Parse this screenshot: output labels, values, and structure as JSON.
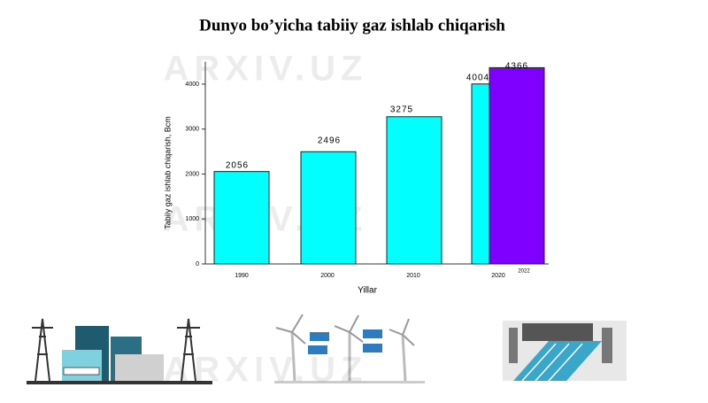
{
  "chart_data": {
    "type": "bar",
    "title": "Dunyo bo’yicha tabiiy gaz ishlab chiqarish",
    "x_label": "Yillar",
    "y_label": "Tabiiy gaz ishlab chiqarish, Bcm",
    "categories": [
      "1990",
      "2000",
      "2010",
      "2020",
      "2022"
    ],
    "values": [
      2056,
      2496,
      3275,
      4004,
      4366
    ],
    "colors": [
      "#00ffff",
      "#00ffff",
      "#00ffff",
      "#00ffff",
      "#8000ff"
    ],
    "ylim": [
      0,
      4500
    ],
    "yticks": [
      0,
      1000,
      2000,
      3000,
      4000
    ],
    "watermark": "ARXIV.UZ"
  }
}
